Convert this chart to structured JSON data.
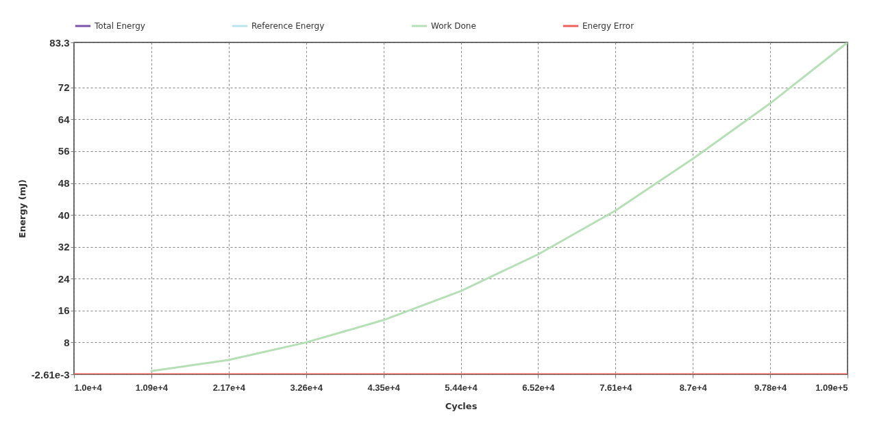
{
  "chart_data": {
    "type": "line",
    "xlabel": "Cycles",
    "ylabel": "Energy (mJ)",
    "categories": [
      "1.0e+4",
      "1.09e+4",
      "2.17e+4",
      "3.26e+4",
      "4.35e+4",
      "5.44e+4",
      "6.52e+4",
      "7.61e+4",
      "8.7e+4",
      "9.78e+4",
      "1.09e+5"
    ],
    "ylim": [
      -0.00261,
      83.3
    ],
    "yticks": [
      {
        "value": -0.00261,
        "label": "-2.61e-3"
      },
      8,
      16,
      24,
      32,
      40,
      48,
      56,
      64,
      72,
      83.3
    ],
    "grid": true,
    "legend": "top",
    "series": [
      {
        "name": "Total Energy",
        "color": "#7b52a8",
        "values": [
          null,
          null,
          null,
          null,
          null,
          null,
          null,
          null,
          null,
          null,
          null
        ]
      },
      {
        "name": "Reference Energy",
        "color": "#b8e4ea",
        "values": [
          null,
          null,
          null,
          null,
          null,
          null,
          null,
          null,
          null,
          null,
          null
        ]
      },
      {
        "name": "Work Done",
        "color": "#b5dfb5",
        "values": [
          null,
          0.8,
          3.6,
          8.0,
          13.6,
          20.9,
          30.1,
          41.1,
          54.1,
          68.0,
          83.3
        ]
      },
      {
        "name": "Energy Error",
        "color": "#f0605a",
        "values": [
          0,
          0,
          0,
          0,
          0,
          0,
          0,
          0,
          0,
          0,
          0
        ]
      }
    ]
  }
}
